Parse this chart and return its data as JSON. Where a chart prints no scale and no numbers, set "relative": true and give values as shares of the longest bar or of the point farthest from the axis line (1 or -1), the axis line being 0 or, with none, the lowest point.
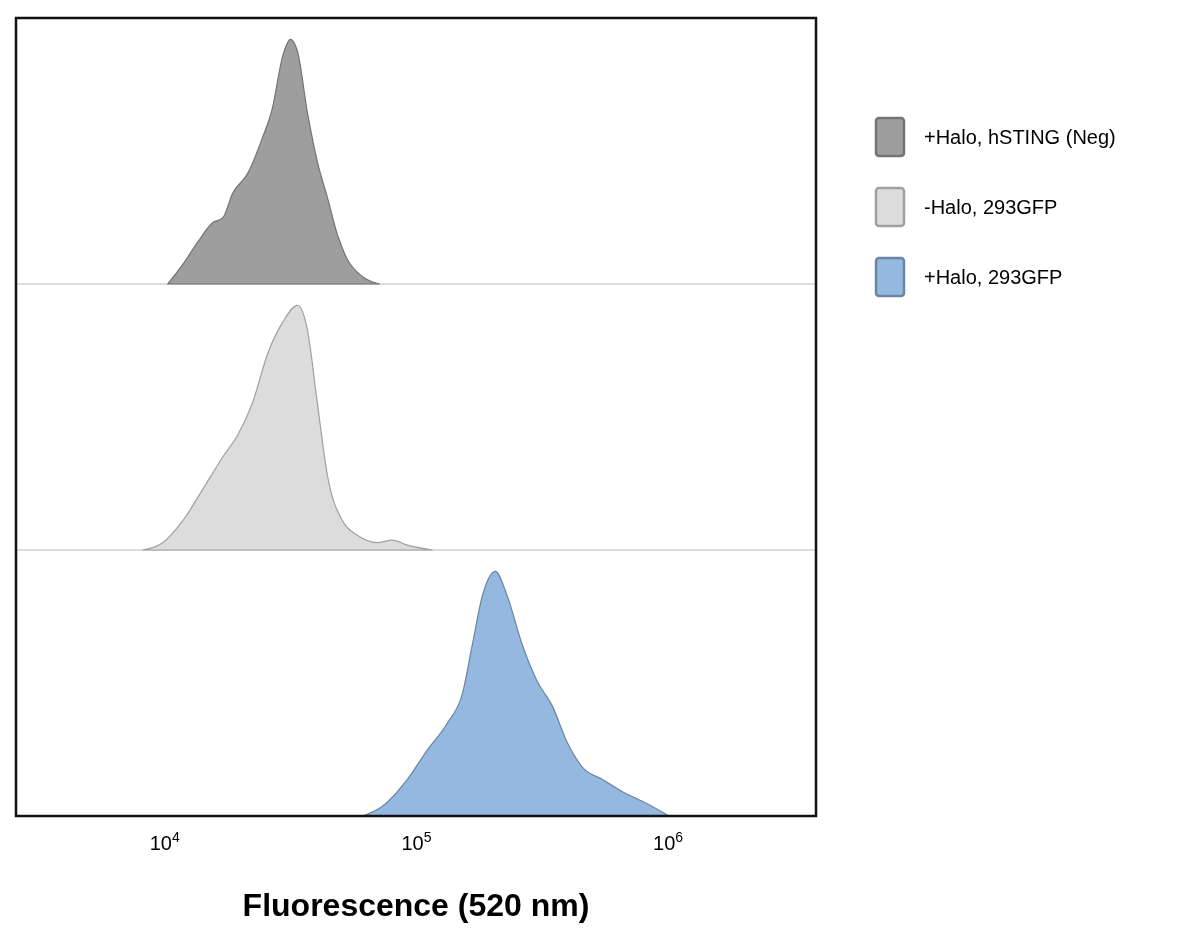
{
  "chart_data": [
    {
      "type": "area",
      "relative": true,
      "log": "x",
      "xlim": [
        2565,
        3870000
      ],
      "tick_labels": false,
      "legend": "right",
      "x": [
        10280,
        11800,
        13500,
        15500,
        17000,
        18600,
        21300,
        24500,
        26800,
        29400,
        31600,
        33700,
        36900,
        40400,
        44400,
        48600,
        53200,
        61100,
        71300
      ],
      "series": [
        {
          "name": "+Halo, hSTING (Neg)",
          "color": "#9e9e9e",
          "values": [
            0,
            0.08,
            0.17,
            0.25,
            0.27,
            0.37,
            0.45,
            0.6,
            0.72,
            0.93,
            1,
            0.95,
            0.7,
            0.5,
            0.35,
            0.2,
            0.1,
            0.03,
            0
          ]
        }
      ]
    },
    {
      "type": "area",
      "relative": true,
      "log": "x",
      "xlim": [
        2565,
        3870000
      ],
      "tick_labels": false,
      "legend": "right",
      "x": [
        8180,
        9820,
        11800,
        14200,
        17000,
        19500,
        22300,
        25600,
        29400,
        33700,
        36900,
        40400,
        44400,
        50800,
        58300,
        70000,
        80300,
        92100,
        115600
      ],
      "series": [
        {
          "name": "-Halo, 293GFP",
          "color": "#dcdcdc",
          "values": [
            0,
            0.03,
            0.12,
            0.25,
            0.38,
            0.47,
            0.6,
            0.8,
            0.93,
            1,
            0.9,
            0.6,
            0.3,
            0.12,
            0.06,
            0.03,
            0.04,
            0.02,
            0
          ]
        }
      ]
    },
    {
      "type": "area",
      "relative": true,
      "log": "x",
      "xlim": [
        2565,
        3870000
      ],
      "xticks": [
        {
          "value": 10000,
          "label": "10$^{4}$"
        },
        {
          "value": 100000,
          "label": "10$^{5}$"
        },
        {
          "value": 1000000,
          "label": "10$^{6}$"
        }
      ],
      "tick_labels": "x",
      "xlabel": "Fluorescence (520 nm)",
      "legend": "right",
      "x": [
        61100,
        73300,
        92100,
        110600,
        132800,
        152300,
        166800,
        182900,
        205800,
        229400,
        263400,
        302200,
        346600,
        397500,
        456000,
        547000,
        656600,
        826000,
        1009000
      ],
      "series": [
        {
          "name": "+Halo, 293GFP",
          "color": "#94b8e0",
          "values": [
            0,
            0.04,
            0.15,
            0.27,
            0.38,
            0.5,
            0.7,
            0.9,
            1,
            0.9,
            0.7,
            0.55,
            0.45,
            0.3,
            0.2,
            0.15,
            0.1,
            0.05,
            0
          ]
        }
      ]
    }
  ]
}
